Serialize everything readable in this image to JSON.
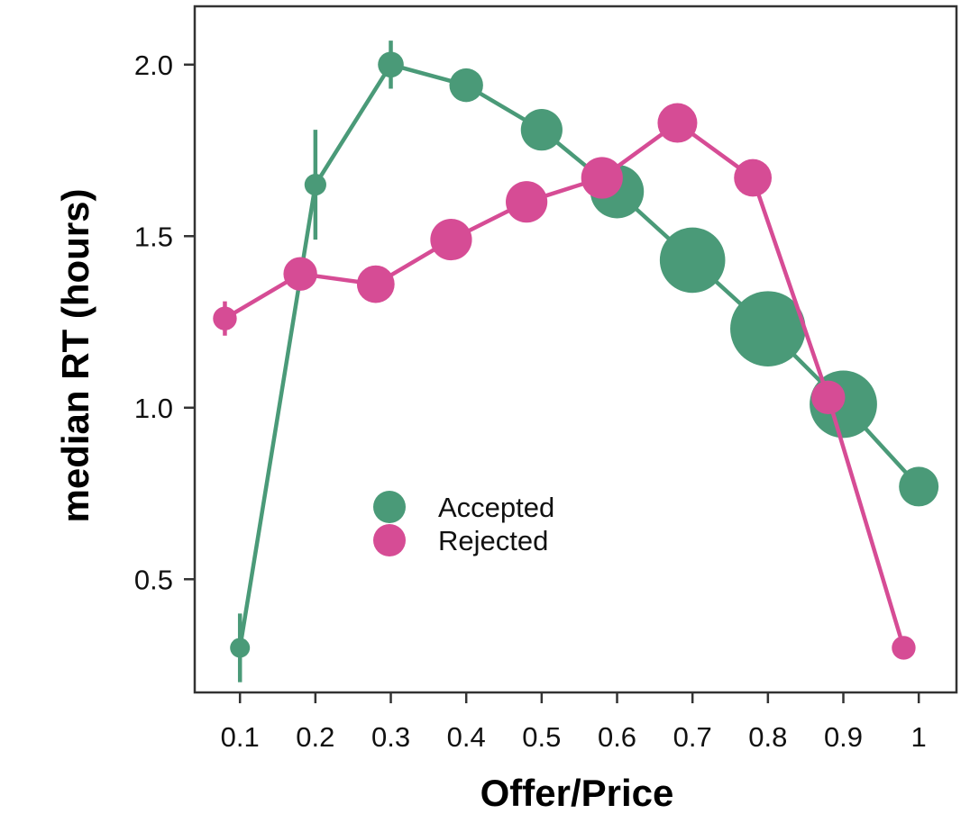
{
  "chart_data": {
    "type": "line",
    "xlabel": "Offer/Price",
    "ylabel": "median RT (hours)",
    "xlim": [
      0.04,
      1.05
    ],
    "ylim": [
      0.17,
      2.17
    ],
    "x_ticks": [
      0.1,
      0.2,
      0.3,
      0.4,
      0.5,
      0.6,
      0.7,
      0.8,
      0.9,
      1
    ],
    "x_tick_labels": [
      "0.1",
      "0.2",
      "0.3",
      "0.4",
      "0.5",
      "0.6",
      "0.7",
      "0.8",
      "0.9",
      "1"
    ],
    "y_ticks": [
      0.5,
      1.0,
      1.5,
      2.0
    ],
    "y_tick_labels": [
      "0.5",
      "1.0",
      "1.5",
      "2.0"
    ],
    "grid": false,
    "legend_position": "lower-left",
    "series": [
      {
        "name": "Accepted",
        "color": "#4a9a78",
        "x": [
          0.1,
          0.2,
          0.3,
          0.4,
          0.5,
          0.6,
          0.7,
          0.8,
          0.9,
          1.0
        ],
        "y": [
          0.3,
          1.65,
          2.0,
          1.94,
          1.81,
          1.63,
          1.43,
          1.23,
          1.01,
          0.77
        ],
        "error": [
          0.1,
          0.16,
          0.07,
          0,
          0,
          0,
          0,
          0,
          0,
          0
        ],
        "relative_size": [
          1,
          1.1,
          1.3,
          1.7,
          2.1,
          2.7,
          3.3,
          3.8,
          3.4,
          2.0
        ]
      },
      {
        "name": "Rejected",
        "color": "#d64c95",
        "x": [
          0.08,
          0.18,
          0.28,
          0.38,
          0.48,
          0.58,
          0.68,
          0.78,
          0.88,
          0.98
        ],
        "y": [
          1.26,
          1.39,
          1.36,
          1.49,
          1.6,
          1.67,
          1.83,
          1.67,
          1.03,
          0.3
        ],
        "error": [
          0.05,
          0,
          0,
          0,
          0,
          0,
          0,
          0,
          0,
          0
        ],
        "relative_size": [
          1.2,
          1.7,
          1.9,
          2.1,
          2.1,
          2.1,
          2.0,
          1.9,
          1.7,
          1.2
        ]
      }
    ]
  }
}
